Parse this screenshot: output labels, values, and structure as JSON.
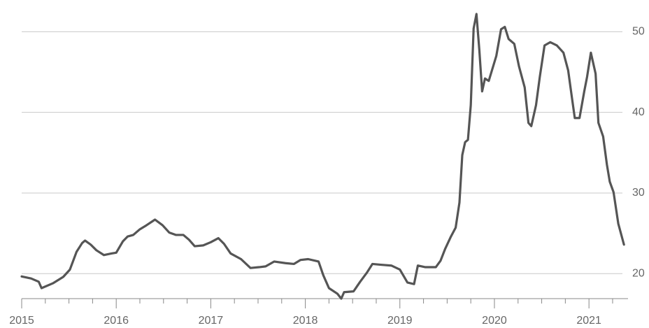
{
  "chart_data": {
    "type": "line",
    "x": [
      2015.0,
      2015.1,
      2015.18,
      2015.21,
      2015.33,
      2015.44,
      2015.51,
      2015.58,
      2015.64,
      2015.67,
      2015.73,
      2015.79,
      2015.87,
      2015.95,
      2016.0,
      2016.07,
      2016.12,
      2016.18,
      2016.25,
      2016.32,
      2016.41,
      2016.49,
      2016.56,
      2016.63,
      2016.71,
      2016.77,
      2016.83,
      2016.92,
      2017.0,
      2017.08,
      2017.14,
      2017.21,
      2017.32,
      2017.42,
      2017.51,
      2017.58,
      2017.67,
      2017.79,
      2017.88,
      2017.95,
      2018.03,
      2018.14,
      2018.19,
      2018.25,
      2018.34,
      2018.38,
      2018.41,
      2018.51,
      2018.58,
      2018.65,
      2018.71,
      2018.8,
      2018.91,
      2019.0,
      2019.08,
      2019.15,
      2019.19,
      2019.27,
      2019.38,
      2019.43,
      2019.48,
      2019.54,
      2019.59,
      2019.63,
      2019.66,
      2019.69,
      2019.72,
      2019.75,
      2019.78,
      2019.81,
      2019.84,
      2019.87,
      2019.9,
      2019.94,
      2020.02,
      2020.07,
      2020.11,
      2020.15,
      2020.21,
      2020.26,
      2020.32,
      2020.36,
      2020.39,
      2020.44,
      2020.48,
      2020.53,
      2020.59,
      2020.66,
      2020.73,
      2020.78,
      2020.82,
      2020.85,
      2020.9,
      2020.95,
      2020.98,
      2021.02,
      2021.07,
      2021.1,
      2021.15,
      2021.19,
      2021.22,
      2021.26,
      2021.31,
      2021.37
    ],
    "series": [
      {
        "color": "#555555",
        "values": [
          19.65,
          19.4,
          19.0,
          18.2,
          18.8,
          19.6,
          20.5,
          22.7,
          23.8,
          24.1,
          23.6,
          22.9,
          22.3,
          22.5,
          22.6,
          24.0,
          24.6,
          24.8,
          25.5,
          26.0,
          26.7,
          26.0,
          25.1,
          24.8,
          24.8,
          24.2,
          23.4,
          23.5,
          23.9,
          24.4,
          23.7,
          22.5,
          21.8,
          20.7,
          20.8,
          20.9,
          21.5,
          21.3,
          21.2,
          21.7,
          21.8,
          21.5,
          19.8,
          18.2,
          17.5,
          16.9,
          17.7,
          17.8,
          19.0,
          20.1,
          21.2,
          21.1,
          21.0,
          20.5,
          18.9,
          18.7,
          21.0,
          20.8,
          20.8,
          21.6,
          23.1,
          24.6,
          25.7,
          28.8,
          34.7,
          36.3,
          36.6,
          40.9,
          50.4,
          52.2,
          47.8,
          42.6,
          44.2,
          43.9,
          47.0,
          50.3,
          50.6,
          49.1,
          48.5,
          45.7,
          43.1,
          38.7,
          38.3,
          40.9,
          44.4,
          48.3,
          48.7,
          48.3,
          47.4,
          45.2,
          41.8,
          39.3,
          39.3,
          42.6,
          44.4,
          47.4,
          44.8,
          38.7,
          37.0,
          33.5,
          31.4,
          30.1,
          26.2,
          23.6
        ]
      }
    ],
    "xlim": [
      2015,
      2021.413
    ],
    "xticks": [
      2015,
      2016,
      2017,
      2018,
      2019,
      2020,
      2021
    ],
    "xminorticks": [
      2015.25,
      2015.5,
      2015.75,
      2016.25,
      2016.5,
      2016.75,
      2017.25,
      2017.5,
      2017.75,
      2018.25,
      2018.5,
      2018.75,
      2019.25,
      2019.5,
      2019.75,
      2020.25,
      2020.5,
      2020.75,
      2021.25
    ],
    "ylim": [
      16.9,
      53.9
    ],
    "yticks": [
      20,
      30,
      40,
      50
    ],
    "grid": true
  }
}
